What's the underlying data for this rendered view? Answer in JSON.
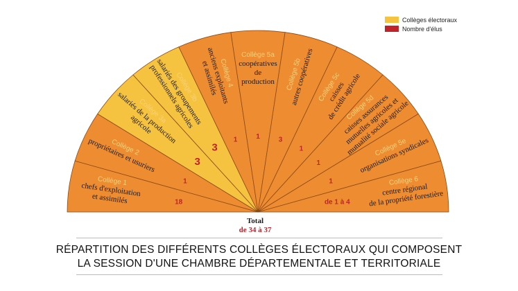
{
  "legend": {
    "items": [
      {
        "label": "Collèges électoraux",
        "color": "#f6c340"
      },
      {
        "label": "Nombre d'élus",
        "color": "#c0232a"
      }
    ]
  },
  "colors": {
    "orange": "#ee8c32",
    "yellow": "#f6c340",
    "college": "#f7d27a",
    "elus": "#c0232a",
    "text": "#1a1a1a"
  },
  "sectors": [
    {
      "college": "Collège 1",
      "desc": [
        "chefs d'exploitation",
        "et assimilés"
      ],
      "elus": "18",
      "fill": "orange"
    },
    {
      "college": "Collège 2",
      "desc": [
        "propriétaires et usuriers"
      ],
      "elus": "1",
      "fill": "orange"
    },
    {
      "college": "Collège 3a",
      "desc": [
        "salariés de la production",
        "agricole"
      ],
      "elus": "3",
      "fill": "yellow"
    },
    {
      "college": "Collège 3b",
      "desc": [
        "salariés des groupements",
        "professionnels agricoles"
      ],
      "elus": "3",
      "fill": "yellow"
    },
    {
      "college": "Collège 4",
      "desc": [
        "anciens exploitants",
        "et assimilés"
      ],
      "elus": "1",
      "fill": "orange"
    },
    {
      "college": "Collège 5a",
      "desc": [
        "coopératives",
        "de",
        "production"
      ],
      "elus": "1",
      "fill": "orange"
    },
    {
      "college": "Collège 5b",
      "desc": [
        "autres coopératives"
      ],
      "elus": "3",
      "fill": "orange"
    },
    {
      "college": "Collège 5c",
      "desc": [
        "caisses",
        "de crédit agricole"
      ],
      "elus": "1",
      "fill": "orange"
    },
    {
      "college": "Collège 5d",
      "desc": [
        "caisses assurances",
        "mutuelles agricoles et",
        "mutualité sociale agricole"
      ],
      "elus": "1",
      "fill": "orange"
    },
    {
      "college": "Collège 5e",
      "desc": [
        "organisations syndicales"
      ],
      "elus": "1",
      "fill": "orange"
    },
    {
      "college": "Collège 6",
      "desc": [
        "centre régional",
        "de la propriété forestière"
      ],
      "elus": "de 1 à 4",
      "fill": "orange"
    }
  ],
  "total": {
    "label": "Total",
    "value": "de 34 à 37"
  },
  "caption": {
    "line1": "RÉPARTITION DES DIFFÉRENTS COLLÈGES ÉLECTORAUX QUI COMPOSENT",
    "line2": "LA SESSION D'UNE CHAMBRE DÉPARTEMENTALE ET TERRITORIALE"
  }
}
